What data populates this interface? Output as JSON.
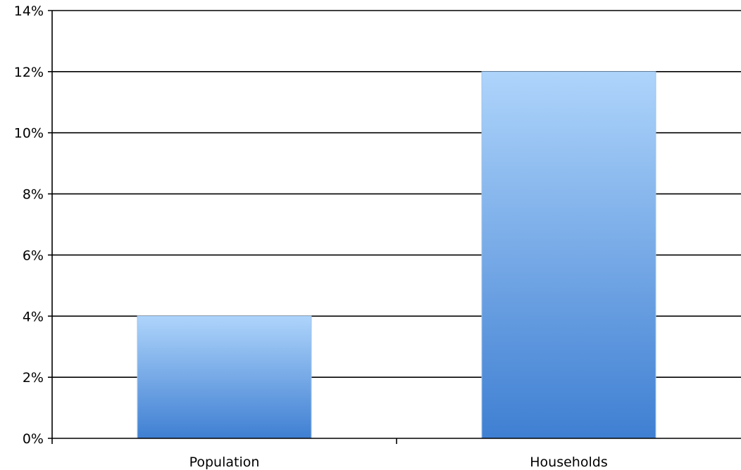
{
  "chart_data": {
    "type": "bar",
    "title": "",
    "xlabel": "",
    "ylabel": "",
    "categories": [
      "Population",
      "Households"
    ],
    "values": [
      4,
      12
    ],
    "ylim": [
      0,
      14
    ],
    "y_ticks": [
      0,
      2,
      4,
      6,
      8,
      10,
      12,
      14
    ],
    "y_tick_labels": [
      "0%",
      "2%",
      "4%",
      "6%",
      "8%",
      "10%",
      "12%",
      "14%"
    ],
    "grid": true,
    "legend": "none",
    "colors": {
      "bar_top": "#aed4fb",
      "bar_bottom": "#3f7fd2",
      "bar_stroke": "#9cc3eb",
      "gridline": "#000000",
      "text": "#000000"
    }
  }
}
